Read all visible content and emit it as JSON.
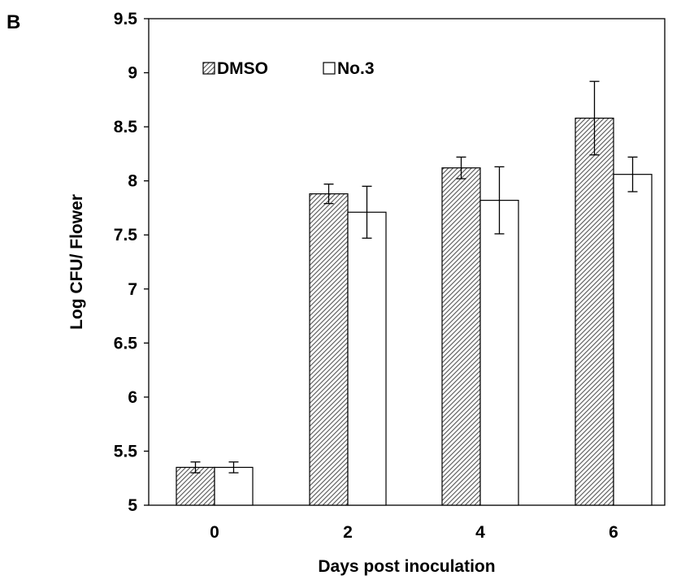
{
  "panel_label": "B",
  "chart_data": {
    "type": "bar",
    "title": "",
    "xlabel": "Days post inoculation",
    "ylabel": "Log CFU/ Flower",
    "categories": [
      "0",
      "2",
      "4",
      "6"
    ],
    "ylim": [
      5,
      9.5
    ],
    "yticks": [
      5,
      5.5,
      6,
      6.5,
      7,
      7.5,
      8,
      8.5,
      9,
      9.5
    ],
    "ytick_labels": [
      "5",
      "5.5",
      "6",
      "6.5",
      "7",
      "7.5",
      "8",
      "8.5",
      "9",
      "9.5"
    ],
    "grid": false,
    "legend_position": "top-left",
    "series": [
      {
        "name": "DMSO",
        "values": [
          5.35,
          7.88,
          8.12,
          8.58
        ],
        "errors": [
          0.05,
          0.09,
          0.1,
          0.34
        ],
        "fill": "hatched"
      },
      {
        "name": "No.3",
        "values": [
          5.35,
          7.71,
          7.82,
          8.06
        ],
        "errors": [
          0.05,
          0.24,
          0.31,
          0.16
        ],
        "fill": "white"
      }
    ],
    "colors": {
      "outline": "#000000",
      "hatch": "#555555",
      "background": "#ffffff"
    }
  }
}
